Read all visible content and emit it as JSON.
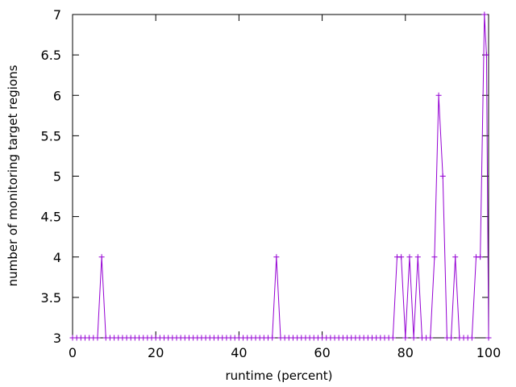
{
  "chart_data": {
    "type": "line",
    "title": "",
    "xlabel": "runtime (percent)",
    "ylabel": "number of monitoring target regions",
    "xlim": [
      0,
      100
    ],
    "ylim": [
      3,
      7
    ],
    "x_ticks": [
      0,
      20,
      40,
      60,
      80,
      100
    ],
    "y_ticks": [
      3,
      3.5,
      4,
      4.5,
      5,
      5.5,
      6,
      6.5,
      7
    ],
    "x_tick_labels": [
      "0",
      "20",
      "40",
      "60",
      "80",
      "100"
    ],
    "y_tick_labels": [
      "3",
      "3.5",
      "4",
      "4.5",
      "5",
      "5.5",
      "6",
      "6.5",
      "7"
    ],
    "grid": false,
    "legend": "none",
    "series_color": "#9400d3",
    "series": [
      {
        "marker": "plus",
        "x": [
          0,
          1,
          2,
          3,
          4,
          5,
          6,
          7,
          8,
          9,
          10,
          11,
          12,
          13,
          14,
          15,
          16,
          17,
          18,
          19,
          20,
          21,
          22,
          23,
          24,
          25,
          26,
          27,
          28,
          29,
          30,
          31,
          32,
          33,
          34,
          35,
          36,
          37,
          38,
          39,
          40,
          41,
          42,
          43,
          44,
          45,
          46,
          47,
          48,
          49,
          50,
          51,
          52,
          53,
          54,
          55,
          56,
          57,
          58,
          59,
          60,
          61,
          62,
          63,
          64,
          65,
          66,
          67,
          68,
          69,
          70,
          71,
          72,
          73,
          74,
          75,
          76,
          77,
          78,
          79,
          80,
          81,
          82,
          83,
          84,
          85,
          86,
          87,
          88,
          89,
          90,
          91,
          92,
          93,
          94,
          95,
          96,
          97,
          98,
          99,
          99.5,
          100
        ],
        "y": [
          3,
          3,
          3,
          3,
          3,
          3,
          3,
          4,
          3,
          3,
          3,
          3,
          3,
          3,
          3,
          3,
          3,
          3,
          3,
          3,
          3,
          3,
          3,
          3,
          3,
          3,
          3,
          3,
          3,
          3,
          3,
          3,
          3,
          3,
          3,
          3,
          3,
          3,
          3,
          3,
          3,
          3,
          3,
          3,
          3,
          3,
          3,
          3,
          3,
          4,
          3,
          3,
          3,
          3,
          3,
          3,
          3,
          3,
          3,
          3,
          3,
          3,
          3,
          3,
          3,
          3,
          3,
          3,
          3,
          3,
          3,
          3,
          3,
          3,
          3,
          3,
          3,
          3,
          4,
          4,
          3,
          4,
          3,
          4,
          3,
          3,
          3,
          4,
          6,
          5,
          3,
          3,
          4,
          3,
          3,
          3,
          3,
          4,
          4,
          7,
          6.5,
          3
        ]
      }
    ]
  }
}
